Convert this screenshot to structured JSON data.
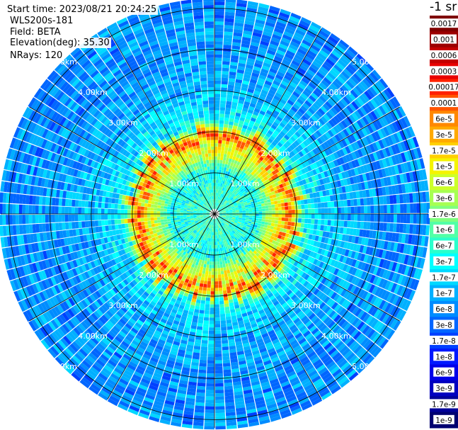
{
  "header": {
    "start_time": "Start time: 2023/08/21 20:24:25",
    "site": "WLS200s-181",
    "field": "Field: BETA",
    "elevation": "Elevation(deg): 35.30",
    "nrays": "NRays: 120"
  },
  "colorbar": {
    "title": "-1 sr",
    "ticks": [
      "0.0017",
      "0.001",
      "0.0006",
      "0.0003",
      "0.00017",
      "0.0001",
      "6e-5",
      "3e-5",
      "1.7e-5",
      "1e-5",
      "6e-6",
      "3e-6",
      "1.7e-6",
      "1e-6",
      "6e-7",
      "3e-7",
      "1.7e-7",
      "1e-7",
      "6e-8",
      "3e-8",
      "1.7e-8",
      "1e-8",
      "6e-9",
      "3e-9",
      "1.7e-9",
      "1e-9"
    ],
    "colors": [
      "#7f0000",
      "#9c0000",
      "#c40000",
      "#e80000",
      "#ff2200",
      "#ff5500",
      "#ff8800",
      "#ffaa00",
      "#ffd000",
      "#f4f400",
      "#ccff2a",
      "#a6ff52",
      "#7fff7f",
      "#52ffa6",
      "#2affcc",
      "#00ffff",
      "#00d8ff",
      "#00b0ff",
      "#008cff",
      "#0066ff",
      "#0040ff",
      "#0018ff",
      "#0000e8",
      "#0000c0",
      "#000098",
      "#000070"
    ]
  },
  "chart_data": {
    "type": "heatmap",
    "projection": "polar-ppi",
    "field": "BETA",
    "units": "-1 sr",
    "nrays": 120,
    "elevation_deg": 35.3,
    "range_rings_km": [
      1,
      2,
      3,
      4,
      5
    ],
    "ring_labels": [
      "1.00km",
      "2.00km",
      "3.00km",
      "4.00km",
      "5.00km"
    ],
    "max_range_km": 5.2,
    "color_scale": "log",
    "value_range": [
      1e-09,
      0.0017
    ],
    "range_profile": [
      {
        "range_km": 0.5,
        "value": 6e-07
      },
      {
        "range_km": 1.0,
        "value": 3e-07
      },
      {
        "range_km": 1.5,
        "value": 1e-05
      },
      {
        "range_km": 2.0,
        "value": 3e-07
      },
      {
        "range_km": 3.0,
        "value": 1e-07
      },
      {
        "range_km": 4.0,
        "value": 6e-08
      },
      {
        "range_km": 5.0,
        "value": 6e-08
      }
    ],
    "aerosol_layer_km": [
      1.4,
      2.1
    ]
  }
}
